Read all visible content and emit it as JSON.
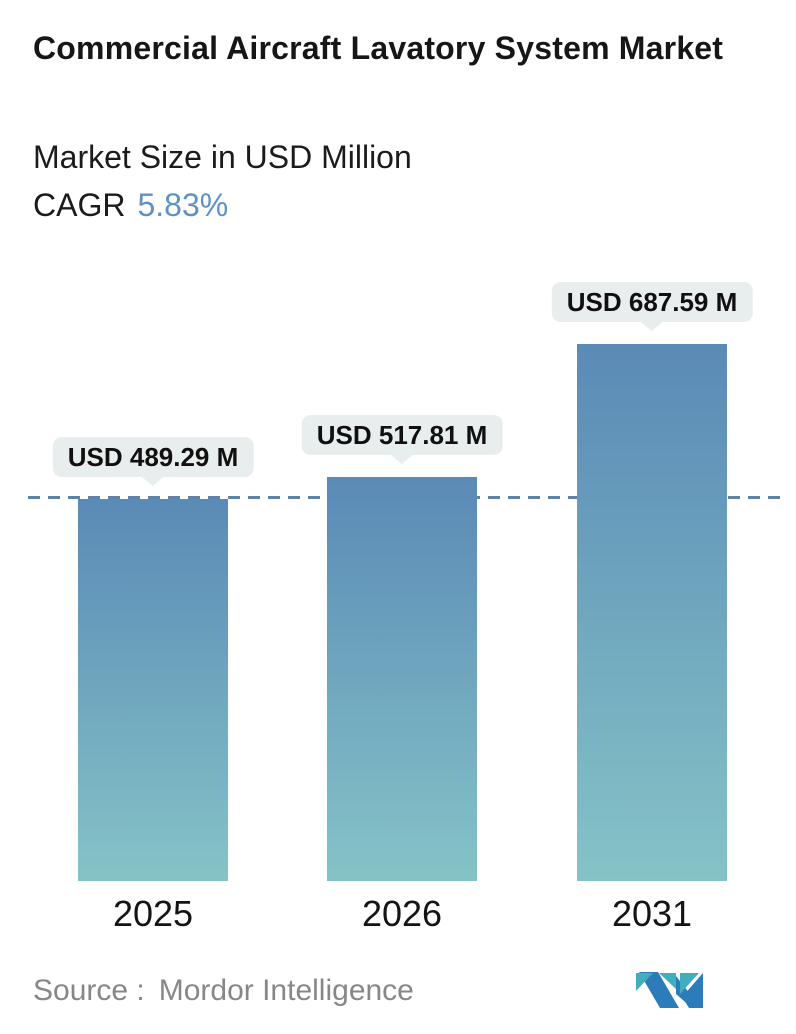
{
  "header": {
    "title": "Commercial Aircraft Lavatory System Market",
    "subtitle": "Market Size in USD Million",
    "cagr_label": "CAGR",
    "cagr_value": "5.83%"
  },
  "chart_data": {
    "type": "bar",
    "categories": [
      "2025",
      "2026",
      "2031"
    ],
    "values": [
      489.29,
      517.81,
      687.59
    ],
    "value_labels": [
      "USD 489.29 M",
      "USD 517.81 M",
      "USD 687.59 M"
    ],
    "title": "Commercial Aircraft Lavatory System Market",
    "subtitle": "Market Size in USD Million",
    "unit": "USD Million",
    "cagr": "5.83%",
    "ylim": [
      0,
      700
    ],
    "grid": false,
    "legend": "none",
    "reference_line": {
      "style": "dashed",
      "value": 489.29
    },
    "bar_gradient_top": "#5a8ab6",
    "bar_gradient_bottom": "#85c3c7",
    "dash_color": "#5e83a7"
  },
  "footer": {
    "source_label": "Source :",
    "source_value": "Mordor Intelligence",
    "logo_name": "mordor-intelligence-logo",
    "logo_colors": {
      "teal": "#3fafbf",
      "blue": "#2d7cba"
    }
  },
  "colors": {
    "cagr_value": "#5e92c5",
    "bubble_bg": "#e8edee",
    "title_text": "#161616",
    "source_text": "#878787"
  }
}
